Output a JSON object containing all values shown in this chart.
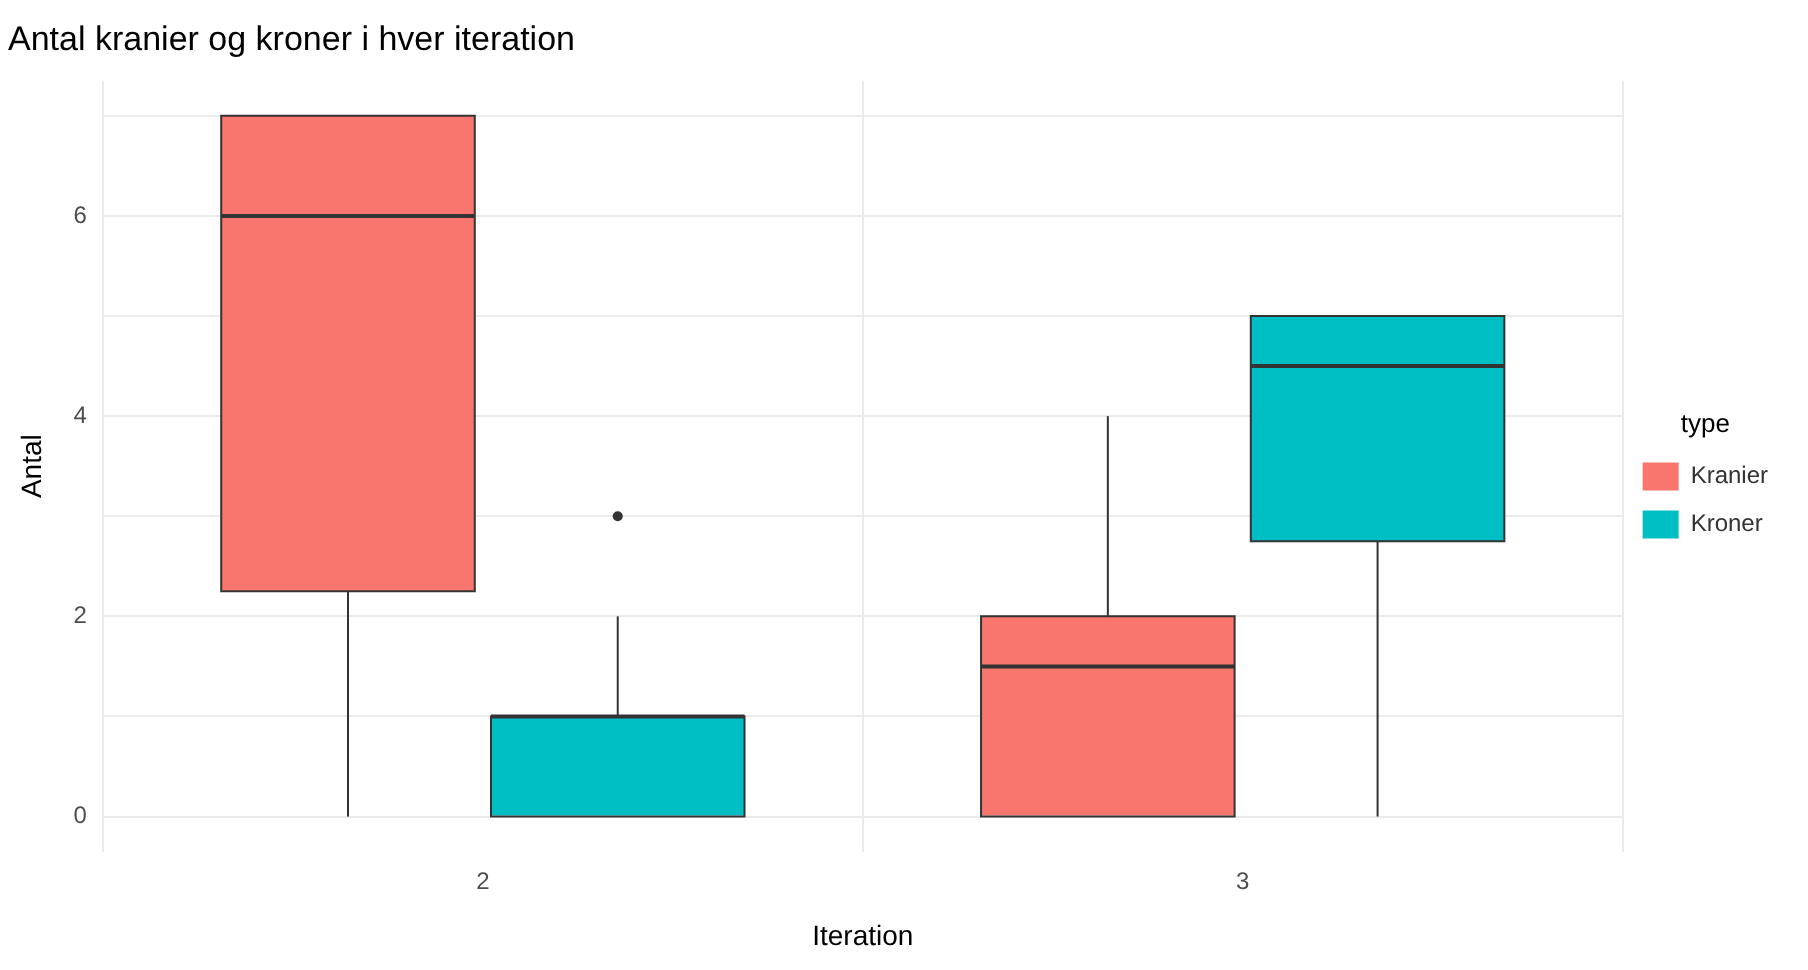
{
  "chart_data": {
    "type": "box",
    "title": "Antal kranier og kroner i hver iteration",
    "xlabel": "Iteration",
    "ylabel": "Antal",
    "legend_title": "type",
    "categories": [
      "2",
      "3"
    ],
    "series": [
      {
        "name": "Kranier",
        "color": "#f8766d",
        "boxes": [
          {
            "low": 0,
            "q1": 2.25,
            "median": 6,
            "q3": 7,
            "high": 7
          },
          {
            "low": 0,
            "q1": 0,
            "median": 1.5,
            "q3": 2,
            "high": 4
          }
        ]
      },
      {
        "name": "Kroner",
        "color": "#00bfc4",
        "boxes": [
          {
            "low": 0,
            "q1": 0,
            "median": 1,
            "q3": 1,
            "high": 2,
            "outliers": [
              3
            ]
          },
          {
            "low": 0,
            "q1": 2.75,
            "median": 4.5,
            "q3": 5,
            "high": 5
          }
        ]
      }
    ],
    "ylim": [
      -0.35,
      7.35
    ],
    "yticks": [
      0,
      {
        "value": 1,
        "label": null
      },
      2,
      {
        "value": 3,
        "label": null
      },
      4,
      {
        "value": 5,
        "label": null
      },
      6,
      {
        "value": 7,
        "label": null
      }
    ],
    "grid": true,
    "legend": "right"
  }
}
